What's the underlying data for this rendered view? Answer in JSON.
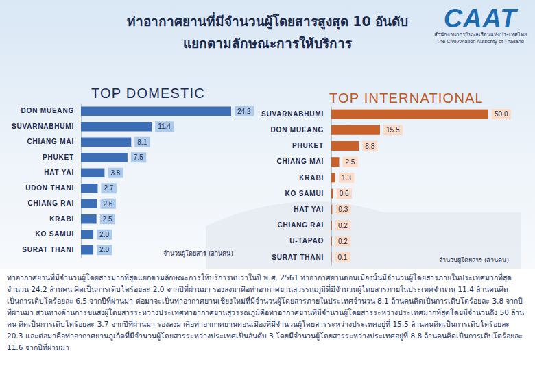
{
  "title": "ท่าอากาศยานที่มีจำนวนผู้โดยสารสูงสุด 10 อันดับ",
  "subtitle": "แยกตามลักษณะการให้บริการ",
  "logo": {
    "text": "CAAT",
    "thai": "สำนักงานการบินพลเรือนแห่งประเทศไทย",
    "english": "The Civil Aviation Authority of Thailand"
  },
  "paragraph": "ท่าอากาศยานที่มีจำนวนผู้โดยสารมากที่สุดแยกตามลักษณะการให้บริการพบว่าในปี พ.ศ. 2561 ท่าอากาศยานดอนเมืองนั้นมีจำนวนผู้โดยสารภายในประเทศมากที่สุดจำนวน 24.2 ล้านคน คิดเป็นการเติบโตร้อยละ 2.0 จากปีที่ผ่านมา รองลงมาคือท่าอากาศยานสุวรรณภูมิที่มีจำนวนผู้โดยสารภายในประเทศจำนวน 11.4 ล้านคนคิดเป็นการเติบโตร้อยละ 6.5 จากปีที่ผ่านมา ต่อมาจะเป็นท่าอากาศยานเชียงใหม่ที่มีจำนวนผู้โดยสารภายในประเทศจำนวน 8.1 ล้านคนคิดเป็นการเติบโตร้อยละ 3.8 จากปีที่ผ่านมา ส่วนทางด้านการขนส่งผู้โดยสารระหว่างประเทศท่าอากาศยานสุวรรณภูมิคือท่าอากาศยานที่มีจำนวนผู้โดยสารระหว่างประเทศมากที่สุดโดยมีจำนวนถึง 50 ล้านคน คิดเป็นการเติบโตร้อยละ 3.7 จากปีที่ผ่านมา รองลงมาคือท่าอากาศยานดอนเมืองที่มีจำนวนผู้โดยสารระหว่างประเทศอยู่ที่ 15.5 ล้านคนคิดเป็นการเติบโตร้อยละ 20.3 และต่อมาคือท่าอากาศยานภูเก็ตที่มีจำนวนผู้โดยสารระหว่างประเทศเป็นอันดับ 3 โดยมีจำนวนผู้โดยสารระหว่างประเทศอยู่ที่ 8.8 ล้านคนคิดเป็นการเติบโตร้อยละ 11.6 จากปีที่ผ่านมา",
  "chart_data": [
    {
      "type": "bar",
      "orientation": "horizontal",
      "title": "TOP DOMESTIC",
      "xlabel": "จำนวนผู้โดยสาร (ล้านคน)",
      "categories": [
        "DON MUEANG",
        "SUVARNABHUMI",
        "CHIANG MAI",
        "PHUKET",
        "HAT YAI",
        "UDON THANI",
        "CHIANG RAI",
        "KRABI",
        "KO SAMUI",
        "SURAT THANI"
      ],
      "values": [
        24.2,
        11.4,
        8.1,
        7.5,
        3.8,
        2.7,
        2.6,
        2.5,
        2.0,
        2.0
      ],
      "value_labels": [
        "24.2",
        "11.4",
        "8.1",
        "7.5",
        "3.8",
        "2.7",
        "2.6",
        "2.5",
        "2.0",
        "2.0"
      ],
      "color": "#3d6fb6",
      "data_labels": true,
      "tick_labels": "y"
    },
    {
      "type": "bar",
      "orientation": "horizontal",
      "title": "TOP INTERNATIONAL",
      "xlabel": "จำนวนผู้โดยสาร (ล้านคน)",
      "categories": [
        "SUVARNABHUMI",
        "DON MUEANG",
        "PHUKET",
        "CHIANG MAI",
        "KRABI",
        "KO SAMUI",
        "HAT YAI",
        "CHIANG RAI",
        "U-TAPAO",
        "SURAT THANI"
      ],
      "values": [
        50.0,
        15.5,
        8.8,
        2.5,
        1.3,
        0.6,
        0.3,
        0.2,
        0.2,
        0.1
      ],
      "value_labels": [
        "50.0",
        "15.5",
        "8.8",
        "2.5",
        "1.3",
        "0.6",
        "0.3",
        "0.2",
        "0.2",
        "0.1"
      ],
      "color": "#c9612b",
      "data_labels": true,
      "tick_labels": "y"
    }
  ]
}
